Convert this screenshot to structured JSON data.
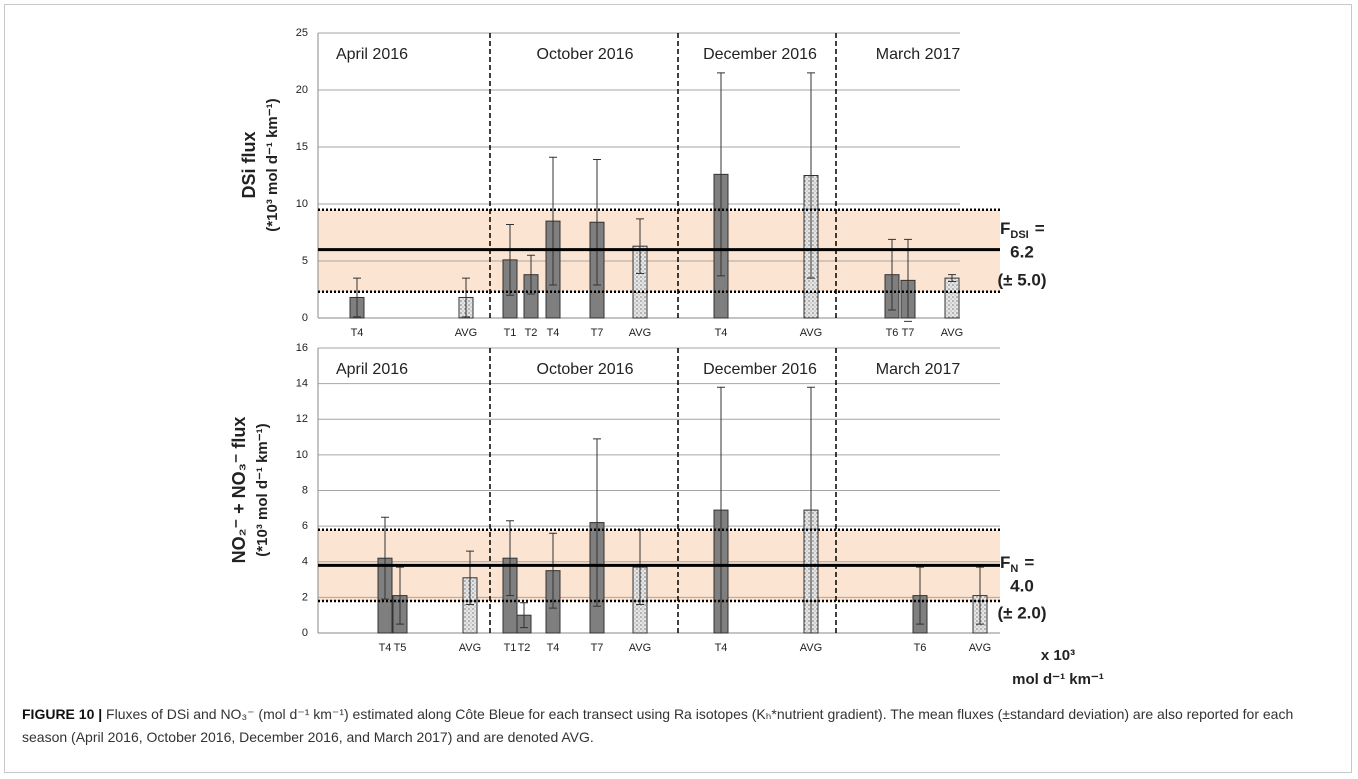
{
  "chart_data": [
    {
      "type": "bar",
      "ylabel": "DSi flux",
      "ylabel2": "(*10³ mol d⁻¹ km⁻¹)",
      "seasons": [
        "April 2016",
        "October 2016",
        "December 2016",
        "March 2017"
      ],
      "categories": [
        "T4",
        "AVG",
        "T1",
        "T2",
        "T4",
        "T7",
        "AVG",
        "T4",
        "AVG",
        "T6",
        "T7",
        "AVG"
      ],
      "values": [
        1.8,
        1.8,
        5.1,
        3.8,
        8.5,
        8.4,
        6.3,
        12.6,
        12.5,
        3.8,
        3.3,
        3.5
      ],
      "errors": [
        1.7,
        1.7,
        3.1,
        1.7,
        5.6,
        5.5,
        2.4,
        8.9,
        9.0,
        3.1,
        3.6,
        0.3
      ],
      "bar_styles": [
        "solid",
        "dotted",
        "solid",
        "solid",
        "solid",
        "solid",
        "dotted",
        "solid",
        "dotted",
        "solid",
        "solid",
        "dotted"
      ],
      "color": "#7f7f7f",
      "band_color": "#fce4d2",
      "ylim": [
        0,
        25
      ],
      "yticks": [
        0,
        5,
        10,
        15,
        20,
        25
      ],
      "grid": true,
      "mean_line": 6.0,
      "band": [
        2.3,
        9.5
      ],
      "annotation": {
        "symbol": "F",
        "subscript": "DSI",
        "equals": "=",
        "mean": "6.2",
        "sd": "(± 5.0)"
      }
    },
    {
      "type": "bar",
      "ylabel": "NO₂⁻ + NO₃⁻ flux",
      "ylabel2": "(*10³ mol d⁻¹ km⁻¹)",
      "seasons": [
        "April 2016",
        "October 2016",
        "December 2016",
        "March 2017"
      ],
      "categories": [
        "T4",
        "T5",
        "AVG",
        "T1",
        "T2",
        "T4",
        "T7",
        "AVG",
        "T4",
        "AVG",
        "T6",
        "AVG"
      ],
      "values": [
        4.2,
        2.1,
        3.1,
        4.2,
        1.0,
        3.5,
        6.2,
        3.7,
        6.9,
        6.9,
        2.1,
        2.1
      ],
      "errors": [
        2.3,
        1.6,
        1.5,
        2.1,
        0.7,
        2.1,
        4.7,
        2.1,
        6.9,
        6.9,
        1.6,
        1.6
      ],
      "bar_styles": [
        "solid",
        "solid",
        "dotted",
        "solid",
        "solid",
        "solid",
        "solid",
        "dotted",
        "solid",
        "dotted",
        "solid",
        "dotted"
      ],
      "color": "#7f7f7f",
      "band_color": "#fce4d2",
      "ylim": [
        0,
        16
      ],
      "yticks": [
        0,
        2,
        4,
        6,
        8,
        10,
        12,
        14,
        16
      ],
      "grid": true,
      "mean_line": 3.8,
      "band": [
        1.8,
        5.8
      ],
      "annotation": {
        "symbol": "F",
        "subscript": "N",
        "equals": "=",
        "mean": "4.0",
        "sd": "(± 2.0)"
      },
      "units_note": [
        "x 10³",
        "mol d⁻¹ km⁻¹"
      ]
    }
  ],
  "caption": {
    "label": "FIGURE 10 |",
    "text": " Fluxes of DSi and NO₃⁻ (mol d⁻¹ km⁻¹) estimated along Côte Bleue for each transect using Ra isotopes (Kₕ*nutrient gradient). The mean fluxes (±standard deviation) are also reported for each season (April 2016, October 2016, December 2016, and March 2017) and are denoted AVG."
  }
}
